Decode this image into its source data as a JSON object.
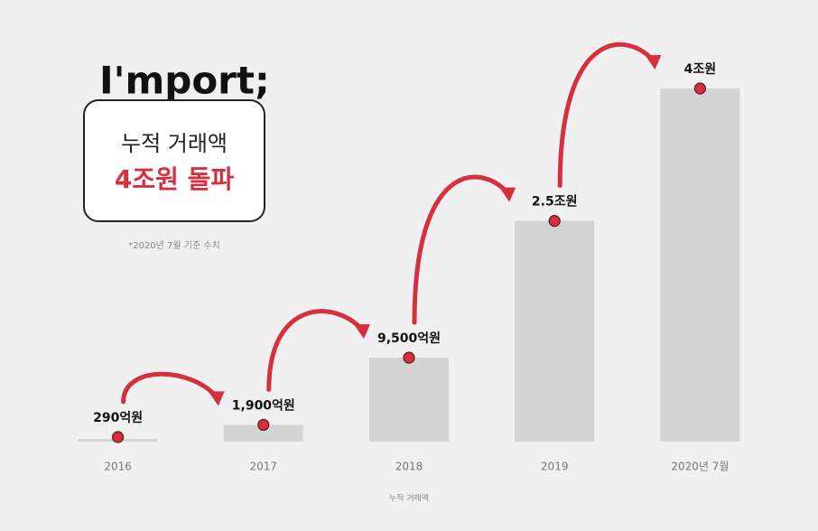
{
  "brand": "I'mport;",
  "headline": {
    "line1": "누적 거래액",
    "line2": "4조원 돌파"
  },
  "note": "*2020년 7월 기준 수치",
  "chart_data": {
    "type": "bar",
    "x_label": "누적 거래액",
    "categories": [
      "2016",
      "2017",
      "2018",
      "2019",
      "2020년 7월"
    ],
    "values": [
      290,
      1900,
      9500,
      25000,
      40000
    ],
    "value_labels": [
      "290억원",
      "1,900억원",
      "9,500억원",
      "2.5조원",
      "4조원"
    ],
    "color": "#d3d3d3",
    "marker_color": "#d6303f",
    "ylim": [
      0,
      40000
    ]
  }
}
